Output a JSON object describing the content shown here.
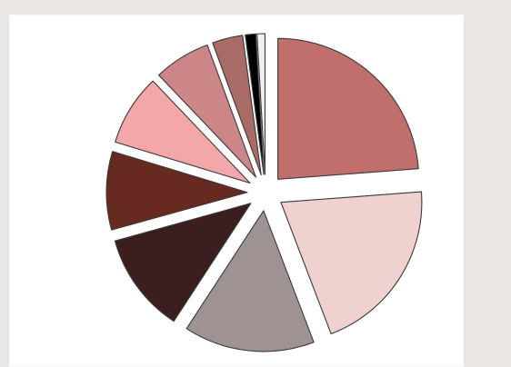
{
  "chart_data": {
    "type": "pie",
    "title": "",
    "legend": "none",
    "series": [
      {
        "values": [
          23.8,
          20.4,
          15.0,
          11.5,
          9.0,
          8.2,
          6.5,
          3.5,
          1.2,
          0.9
        ],
        "colors": [
          "#c16f6d",
          "#efd1cf",
          "#9e9392",
          "#3a1f1e",
          "#662a20",
          "#f4a7a8",
          "#cc8688",
          "#a96b66",
          "#000000",
          "#f3efee"
        ]
      }
    ]
  }
}
